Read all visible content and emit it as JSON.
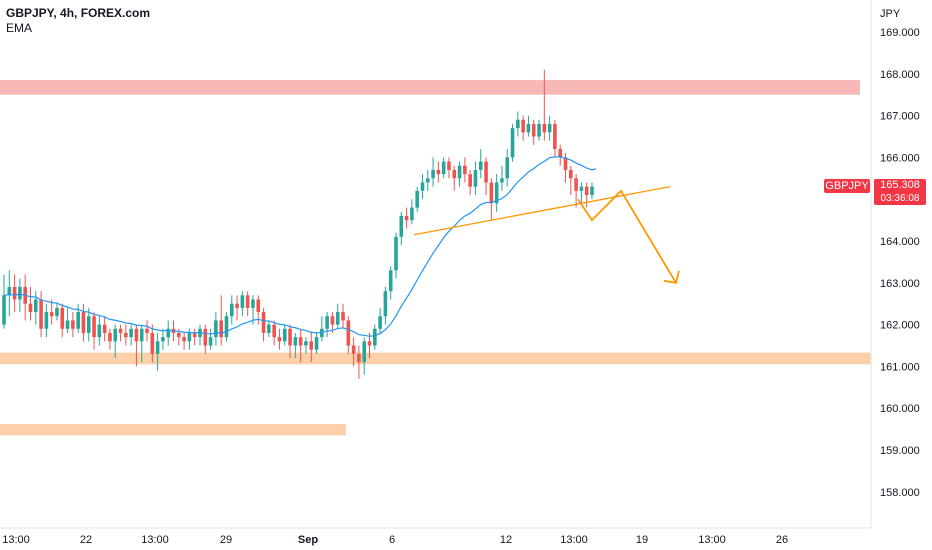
{
  "header": {
    "symbol_line": "GBPJPY, 4h, FOREX.com",
    "indicator": "EMA"
  },
  "price_axis": {
    "unit": "JPY",
    "ticks": [
      "169.000",
      "168.000",
      "167.000",
      "166.000",
      "165.000",
      "164.000",
      "163.000",
      "162.000",
      "161.000",
      "160.000",
      "159.000",
      "158.000"
    ]
  },
  "time_axis": {
    "ticks": [
      {
        "label": "13:00",
        "bold": false
      },
      {
        "label": "22",
        "bold": false
      },
      {
        "label": "13:00",
        "bold": false
      },
      {
        "label": "29",
        "bold": false
      },
      {
        "label": "Sep",
        "bold": true
      },
      {
        "label": "6",
        "bold": false
      },
      {
        "label": "12",
        "bold": false
      },
      {
        "label": "13:00",
        "bold": false
      },
      {
        "label": "19",
        "bold": false
      },
      {
        "label": "13:00",
        "bold": false
      },
      {
        "label": "26",
        "bold": false
      }
    ]
  },
  "last_price": {
    "symbol": "GBPJPY",
    "value": "165.308",
    "countdown": "03:36:08"
  },
  "colors": {
    "up": "#26a69a",
    "down": "#ef5350",
    "ema": "#2196f3",
    "trendline": "#ff9800",
    "resistance_zone": "#f8a6a6",
    "support_zone": "#fbc89a",
    "badge": "#f23645"
  },
  "chart_data": {
    "type": "candlestick",
    "y_range": [
      157.4,
      169.6
    ],
    "zones": [
      {
        "name": "resistance",
        "from": 167.5,
        "to": 167.85
      },
      {
        "name": "support",
        "from": 161.05,
        "to": 161.33
      },
      {
        "name": "lower",
        "from": 159.35,
        "to": 159.62
      }
    ],
    "trendline": [
      [
        164.15
      ],
      [
        165.3
      ]
    ],
    "projection": [
      165.0,
      164.5,
      165.2,
      163.0
    ],
    "candles": [
      [
        162.0,
        162.7,
        163.2,
        161.9
      ],
      [
        162.7,
        162.9,
        163.3,
        162.2
      ],
      [
        162.9,
        162.6,
        163.2,
        162.3
      ],
      [
        162.6,
        162.9,
        163.1,
        162.3
      ],
      [
        162.9,
        162.5,
        163.2,
        162.1
      ],
      [
        162.5,
        162.3,
        162.9,
        162.1
      ],
      [
        162.3,
        162.6,
        162.8,
        162.0
      ],
      [
        162.6,
        161.9,
        162.8,
        161.7
      ],
      [
        161.9,
        162.3,
        162.5,
        161.7
      ],
      [
        162.3,
        162.2,
        162.6,
        162.0
      ],
      [
        162.2,
        162.4,
        162.5,
        162.1
      ],
      [
        162.4,
        161.9,
        162.5,
        161.7
      ],
      [
        161.9,
        162.1,
        162.4,
        161.8
      ],
      [
        162.1,
        161.9,
        162.3,
        161.7
      ],
      [
        161.9,
        162.3,
        162.5,
        161.8
      ],
      [
        162.3,
        161.8,
        162.5,
        161.6
      ],
      [
        161.8,
        162.2,
        162.4,
        161.6
      ],
      [
        162.2,
        161.7,
        162.3,
        161.4
      ],
      [
        161.7,
        162.0,
        162.2,
        161.5
      ],
      [
        162.0,
        161.8,
        162.2,
        161.6
      ],
      [
        161.8,
        161.6,
        161.9,
        161.4
      ],
      [
        161.6,
        161.9,
        162.0,
        161.2
      ],
      [
        161.9,
        161.8,
        162.0,
        161.6
      ],
      [
        161.8,
        161.7,
        162.0,
        161.5
      ],
      [
        161.7,
        161.9,
        162.0,
        161.5
      ],
      [
        161.9,
        161.6,
        162.0,
        161.0
      ],
      [
        161.6,
        161.9,
        162.0,
        161.1
      ],
      [
        161.9,
        161.8,
        162.1,
        161.6
      ],
      [
        161.8,
        161.3,
        162.0,
        161.1
      ],
      [
        161.3,
        161.6,
        161.8,
        160.9
      ],
      [
        161.6,
        161.7,
        161.9,
        161.4
      ],
      [
        161.7,
        161.9,
        162.1,
        161.5
      ],
      [
        161.9,
        161.8,
        162.1,
        161.6
      ],
      [
        161.8,
        161.7,
        161.9,
        161.5
      ],
      [
        161.7,
        161.6,
        161.8,
        161.4
      ],
      [
        161.6,
        161.8,
        161.9,
        161.4
      ],
      [
        161.8,
        161.7,
        161.9,
        161.5
      ],
      [
        161.7,
        161.9,
        162.0,
        161.5
      ],
      [
        161.9,
        161.5,
        162.0,
        161.3
      ],
      [
        161.5,
        161.7,
        161.9,
        161.4
      ],
      [
        161.7,
        162.1,
        162.3,
        161.5
      ],
      [
        162.1,
        161.7,
        162.7,
        161.5
      ],
      [
        161.7,
        162.2,
        162.3,
        161.6
      ],
      [
        162.2,
        162.5,
        162.7,
        162.0
      ],
      [
        162.5,
        162.4,
        162.7,
        162.1
      ],
      [
        162.4,
        162.7,
        162.8,
        162.2
      ],
      [
        162.7,
        162.4,
        162.8,
        162.2
      ],
      [
        162.4,
        162.6,
        162.7,
        162.0
      ],
      [
        162.6,
        162.3,
        162.7,
        162.0
      ],
      [
        162.3,
        161.8,
        162.4,
        161.6
      ],
      [
        161.8,
        162.0,
        162.1,
        161.7
      ],
      [
        162.0,
        161.7,
        162.1,
        161.5
      ],
      [
        161.7,
        161.6,
        161.9,
        161.4
      ],
      [
        161.6,
        161.9,
        162.0,
        161.5
      ],
      [
        161.9,
        161.5,
        162.0,
        161.2
      ],
      [
        161.5,
        161.7,
        161.8,
        161.2
      ],
      [
        161.7,
        161.5,
        161.9,
        161.1
      ],
      [
        161.5,
        161.6,
        161.7,
        161.3
      ],
      [
        161.6,
        161.4,
        161.8,
        161.1
      ],
      [
        161.4,
        161.7,
        161.8,
        161.3
      ],
      [
        161.7,
        161.9,
        162.2,
        161.6
      ],
      [
        161.9,
        162.2,
        162.3,
        161.7
      ],
      [
        162.2,
        162.0,
        162.3,
        161.8
      ],
      [
        162.0,
        162.3,
        162.5,
        161.9
      ],
      [
        162.3,
        162.1,
        162.5,
        161.9
      ],
      [
        162.1,
        161.5,
        162.2,
        161.3
      ],
      [
        161.5,
        161.3,
        161.7,
        161.0
      ],
      [
        161.3,
        161.1,
        161.5,
        160.7
      ],
      [
        161.1,
        161.6,
        161.7,
        160.8
      ],
      [
        161.6,
        161.5,
        161.8,
        161.2
      ],
      [
        161.5,
        161.9,
        162.0,
        161.4
      ],
      [
        161.9,
        162.2,
        162.4,
        161.8
      ],
      [
        162.2,
        162.8,
        162.9,
        162.0
      ],
      [
        162.8,
        163.3,
        163.4,
        162.6
      ],
      [
        163.3,
        164.1,
        164.2,
        163.1
      ],
      [
        164.1,
        164.6,
        164.7,
        163.9
      ],
      [
        164.6,
        164.5,
        164.8,
        164.3
      ],
      [
        164.5,
        164.8,
        165.0,
        164.4
      ],
      [
        164.8,
        165.2,
        165.3,
        164.7
      ],
      [
        165.2,
        165.4,
        165.6,
        165.0
      ],
      [
        165.4,
        165.5,
        165.7,
        165.2
      ],
      [
        165.5,
        165.7,
        166.0,
        165.3
      ],
      [
        165.7,
        165.6,
        165.9,
        165.4
      ],
      [
        165.6,
        165.9,
        166.0,
        165.5
      ],
      [
        165.9,
        165.7,
        166.0,
        165.5
      ],
      [
        165.7,
        165.5,
        165.8,
        165.2
      ],
      [
        165.5,
        165.8,
        165.9,
        165.3
      ],
      [
        165.8,
        165.6,
        166.0,
        165.4
      ],
      [
        165.6,
        165.3,
        165.7,
        165.1
      ],
      [
        165.3,
        165.7,
        165.9,
        165.1
      ],
      [
        165.7,
        165.9,
        166.2,
        165.5
      ],
      [
        165.9,
        165.4,
        166.0,
        165.1
      ],
      [
        165.4,
        164.9,
        165.5,
        164.5
      ],
      [
        164.9,
        165.4,
        165.6,
        164.7
      ],
      [
        165.4,
        165.5,
        165.8,
        165.2
      ],
      [
        165.5,
        166.0,
        166.2,
        165.3
      ],
      [
        166.0,
        166.7,
        166.8,
        165.9
      ],
      [
        166.7,
        166.9,
        167.1,
        166.5
      ],
      [
        166.9,
        166.6,
        167.0,
        166.4
      ],
      [
        166.6,
        166.8,
        167.0,
        166.5
      ],
      [
        166.8,
        166.5,
        166.9,
        166.3
      ],
      [
        166.5,
        166.8,
        166.9,
        166.4
      ],
      [
        166.8,
        166.6,
        168.1,
        166.4
      ],
      [
        166.6,
        166.8,
        167.0,
        166.4
      ],
      [
        166.8,
        166.2,
        166.9,
        166.0
      ],
      [
        166.2,
        166.0,
        166.3,
        165.8
      ],
      [
        166.0,
        165.7,
        166.1,
        165.4
      ],
      [
        165.7,
        165.5,
        165.8,
        165.1
      ],
      [
        165.5,
        165.2,
        165.6,
        164.8
      ],
      [
        165.2,
        165.3,
        165.4,
        164.9
      ],
      [
        165.3,
        165.1,
        165.4,
        164.8
      ],
      [
        165.1,
        165.3,
        165.4,
        165.0
      ]
    ]
  }
}
